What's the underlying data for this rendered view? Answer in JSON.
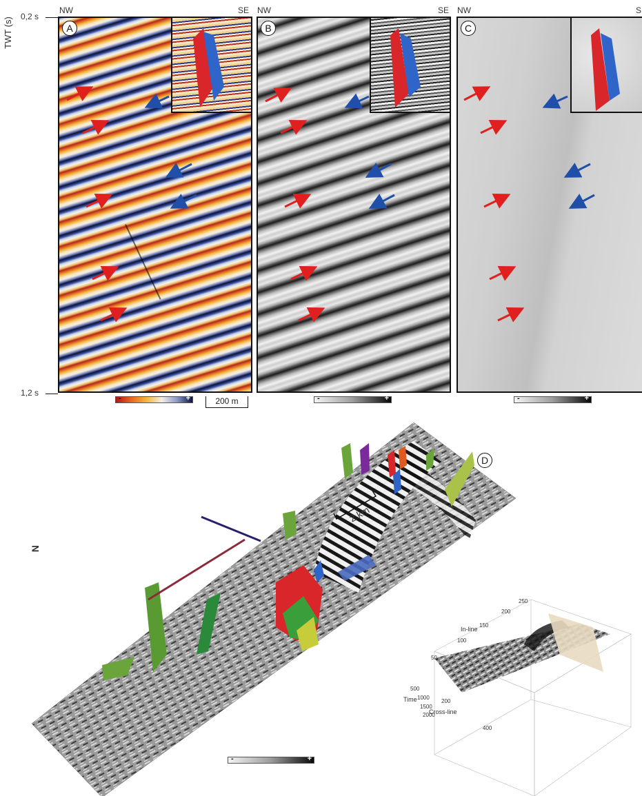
{
  "axis": {
    "ylabel": "TWT (s)",
    "top_tick": "0,2 s",
    "bottom_tick": "1,2 s"
  },
  "panels": [
    {
      "letter": "A",
      "left": "NW",
      "right": "SE",
      "colorbar_minus": "-",
      "colorbar_plus": "+"
    },
    {
      "letter": "B",
      "left": "NW",
      "right": "SE",
      "colorbar_minus": "-",
      "colorbar_plus": "+"
    },
    {
      "letter": "C",
      "left": "NW",
      "right": "SE",
      "colorbar_minus": "-",
      "colorbar_plus": "+"
    }
  ],
  "scale_bar_a": "200 m",
  "panel_d": {
    "letter": "D",
    "scale_bar": "2 km",
    "north": "N",
    "colorbar_minus": "-",
    "colorbar_plus": "+",
    "inset3d": {
      "inline_label": "In-line",
      "crossline_label": "Cross-line",
      "time_label": "Time",
      "inline_ticks": [
        "50",
        "100",
        "150",
        "200",
        "250"
      ],
      "time_ticks": [
        "500",
        "1000",
        "1500",
        "2000"
      ],
      "crossline_ticks": [
        "200",
        "400"
      ]
    }
  },
  "colors": {
    "red_arrow": "#e0201f",
    "blue_arrow": "#1f4fa8",
    "fault_red": "#d8262a",
    "fault_blue": "#2f64c8"
  }
}
